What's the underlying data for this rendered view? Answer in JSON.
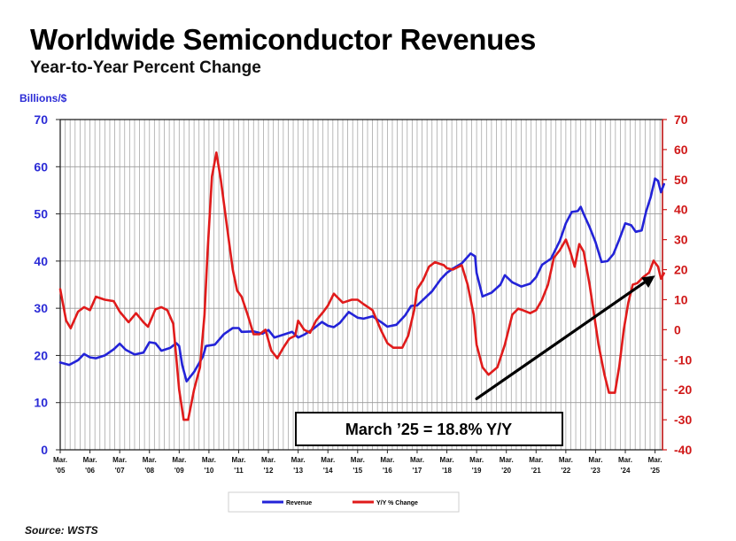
{
  "header": {
    "title": "Worldwide Semiconductor Revenues",
    "subtitle": "Year-to-Year Percent Change",
    "units": "Billions/$"
  },
  "footer": {
    "source": "Source: WSTS"
  },
  "colors": {
    "revenue": "#2323d8",
    "yoy": "#e01b1b",
    "left_axis": "#2b2bd6",
    "right_axis": "#d01818",
    "arrow": "#000000"
  },
  "chart_data": {
    "type": "line",
    "title": "Worldwide Semiconductor Revenues",
    "subtitle": "Year-to-Year Percent Change",
    "ylabel_left": "Billions/$",
    "ylim_left": [
      0,
      70
    ],
    "ylim_right": [
      -40,
      70
    ],
    "left_ticks": [
      0,
      10,
      20,
      30,
      40,
      50,
      60,
      70
    ],
    "right_ticks": [
      -40,
      -30,
      -20,
      -10,
      0,
      10,
      20,
      30,
      40,
      50,
      60,
      70
    ],
    "x_range": [
      2005,
      2025.25
    ],
    "x_ticks": [
      {
        "m": "Mar.",
        "y": "'05",
        "x": 2005
      },
      {
        "m": "Mar.",
        "y": "'06",
        "x": 2006
      },
      {
        "m": "Mar.",
        "y": "'07",
        "x": 2007
      },
      {
        "m": "Mar.",
        "y": "'08",
        "x": 2008
      },
      {
        "m": "Mar.",
        "y": "'09",
        "x": 2009
      },
      {
        "m": "Mar.",
        "y": "'10",
        "x": 2010
      },
      {
        "m": "Mar.",
        "y": "'11",
        "x": 2011
      },
      {
        "m": "Mar.",
        "y": "'12",
        "x": 2012
      },
      {
        "m": "Mar.",
        "y": "'13",
        "x": 2013
      },
      {
        "m": "Mar.",
        "y": "'14",
        "x": 2014
      },
      {
        "m": "Mar.",
        "y": "'15",
        "x": 2015
      },
      {
        "m": "Mar.",
        "y": "'16",
        "x": 2016
      },
      {
        "m": "Mar.",
        "y": "'17",
        "x": 2017
      },
      {
        "m": "Mar.",
        "y": "'18",
        "x": 2018
      },
      {
        "m": "Mar.",
        "y": "'19",
        "x": 2019
      },
      {
        "m": "Mar.",
        "y": "'20",
        "x": 2020
      },
      {
        "m": "Mar.",
        "y": "'21",
        "x": 2021
      },
      {
        "m": "Mar.",
        "y": "'22",
        "x": 2022
      },
      {
        "m": "Mar.",
        "y": "'23",
        "x": 2023
      },
      {
        "m": "Mar.",
        "y": "'24",
        "x": 2024
      },
      {
        "m": "Mar.",
        "y": "'25",
        "x": 2025
      }
    ],
    "series": [
      {
        "name": "Revenue",
        "axis": "left",
        "points": [
          [
            2005.0,
            18.5
          ],
          [
            2005.3,
            18.0
          ],
          [
            2005.6,
            19.0
          ],
          [
            2005.8,
            20.3
          ],
          [
            2006.0,
            19.6
          ],
          [
            2006.2,
            19.4
          ],
          [
            2006.5,
            20.0
          ],
          [
            2006.8,
            21.3
          ],
          [
            2007.0,
            22.5
          ],
          [
            2007.2,
            21.2
          ],
          [
            2007.5,
            20.2
          ],
          [
            2007.8,
            20.6
          ],
          [
            2008.0,
            22.8
          ],
          [
            2008.2,
            22.6
          ],
          [
            2008.4,
            21.0
          ],
          [
            2008.7,
            21.6
          ],
          [
            2008.9,
            22.6
          ],
          [
            2009.0,
            22.0
          ],
          [
            2009.1,
            18.0
          ],
          [
            2009.25,
            14.5
          ],
          [
            2009.5,
            16.5
          ],
          [
            2009.8,
            19.8
          ],
          [
            2009.9,
            22.0
          ],
          [
            2010.2,
            22.3
          ],
          [
            2010.5,
            24.5
          ],
          [
            2010.8,
            25.8
          ],
          [
            2011.0,
            25.8
          ],
          [
            2011.1,
            25.0
          ],
          [
            2011.5,
            25.1
          ],
          [
            2011.8,
            24.6
          ],
          [
            2012.0,
            25.4
          ],
          [
            2012.2,
            23.8
          ],
          [
            2012.5,
            24.4
          ],
          [
            2012.8,
            25.0
          ],
          [
            2013.0,
            23.8
          ],
          [
            2013.2,
            24.4
          ],
          [
            2013.5,
            25.6
          ],
          [
            2013.8,
            27.1
          ],
          [
            2014.0,
            26.3
          ],
          [
            2014.2,
            26.0
          ],
          [
            2014.4,
            26.9
          ],
          [
            2014.7,
            29.2
          ],
          [
            2015.0,
            28.0
          ],
          [
            2015.2,
            27.8
          ],
          [
            2015.5,
            28.3
          ],
          [
            2015.8,
            27.0
          ],
          [
            2016.0,
            26.1
          ],
          [
            2016.3,
            26.5
          ],
          [
            2016.6,
            28.5
          ],
          [
            2016.8,
            30.5
          ],
          [
            2017.0,
            30.6
          ],
          [
            2017.2,
            31.8
          ],
          [
            2017.5,
            33.6
          ],
          [
            2017.8,
            36.2
          ],
          [
            2018.0,
            37.5
          ],
          [
            2018.2,
            38.4
          ],
          [
            2018.5,
            39.5
          ],
          [
            2018.8,
            41.6
          ],
          [
            2018.95,
            41.0
          ],
          [
            2019.0,
            37.5
          ],
          [
            2019.2,
            32.5
          ],
          [
            2019.5,
            33.3
          ],
          [
            2019.8,
            35.0
          ],
          [
            2019.95,
            37.0
          ],
          [
            2020.2,
            35.5
          ],
          [
            2020.5,
            34.6
          ],
          [
            2020.8,
            35.2
          ],
          [
            2021.0,
            36.6
          ],
          [
            2021.2,
            39.2
          ],
          [
            2021.5,
            40.5
          ],
          [
            2021.8,
            44.3
          ],
          [
            2022.0,
            48.0
          ],
          [
            2022.2,
            50.4
          ],
          [
            2022.4,
            50.6
          ],
          [
            2022.5,
            51.5
          ],
          [
            2022.6,
            50.0
          ],
          [
            2022.8,
            47.2
          ],
          [
            2023.0,
            44.0
          ],
          [
            2023.2,
            39.8
          ],
          [
            2023.4,
            40.0
          ],
          [
            2023.6,
            41.5
          ],
          [
            2023.8,
            44.6
          ],
          [
            2024.0,
            48.0
          ],
          [
            2024.2,
            47.6
          ],
          [
            2024.35,
            46.2
          ],
          [
            2024.55,
            46.5
          ],
          [
            2024.7,
            50.5
          ],
          [
            2024.85,
            53.5
          ],
          [
            2025.0,
            57.5
          ],
          [
            2025.1,
            57.0
          ],
          [
            2025.2,
            54.6
          ],
          [
            2025.3,
            56.3
          ]
        ]
      },
      {
        "name": "Y/Y % Change",
        "axis": "right",
        "points": [
          [
            2005.0,
            13.5
          ],
          [
            2005.2,
            3.0
          ],
          [
            2005.35,
            0.5
          ],
          [
            2005.6,
            6.0
          ],
          [
            2005.8,
            7.5
          ],
          [
            2006.0,
            6.5
          ],
          [
            2006.2,
            11.0
          ],
          [
            2006.5,
            10.0
          ],
          [
            2006.8,
            9.5
          ],
          [
            2007.0,
            6.0
          ],
          [
            2007.3,
            2.5
          ],
          [
            2007.55,
            5.5
          ],
          [
            2007.8,
            2.5
          ],
          [
            2007.95,
            1.0
          ],
          [
            2008.2,
            6.8
          ],
          [
            2008.4,
            7.5
          ],
          [
            2008.6,
            6.5
          ],
          [
            2008.8,
            2.0
          ],
          [
            2009.0,
            -20.0
          ],
          [
            2009.15,
            -30.0
          ],
          [
            2009.3,
            -30.0
          ],
          [
            2009.5,
            -20.0
          ],
          [
            2009.7,
            -12.5
          ],
          [
            2009.85,
            5.0
          ],
          [
            2009.95,
            25.0
          ],
          [
            2010.1,
            51.0
          ],
          [
            2010.25,
            59.0
          ],
          [
            2010.4,
            50.0
          ],
          [
            2010.6,
            35.0
          ],
          [
            2010.8,
            20.0
          ],
          [
            2010.95,
            13.0
          ],
          [
            2011.1,
            11.0
          ],
          [
            2011.3,
            5.0
          ],
          [
            2011.5,
            -1.5
          ],
          [
            2011.7,
            -1.5
          ],
          [
            2011.9,
            0.0
          ],
          [
            2012.1,
            -7.0
          ],
          [
            2012.3,
            -9.5
          ],
          [
            2012.5,
            -6.0
          ],
          [
            2012.7,
            -3.0
          ],
          [
            2012.9,
            -2.0
          ],
          [
            2013.0,
            3.0
          ],
          [
            2013.2,
            0.0
          ],
          [
            2013.4,
            -1.0
          ],
          [
            2013.6,
            3.0
          ],
          [
            2013.85,
            6.0
          ],
          [
            2014.0,
            8.0
          ],
          [
            2014.2,
            12.0
          ],
          [
            2014.5,
            9.0
          ],
          [
            2014.8,
            10.0
          ],
          [
            2015.0,
            10.0
          ],
          [
            2015.2,
            8.5
          ],
          [
            2015.5,
            6.5
          ],
          [
            2015.8,
            -0.5
          ],
          [
            2016.0,
            -4.5
          ],
          [
            2016.2,
            -6.0
          ],
          [
            2016.5,
            -6.0
          ],
          [
            2016.7,
            -2.0
          ],
          [
            2016.9,
            6.5
          ],
          [
            2017.0,
            13.5
          ],
          [
            2017.2,
            16.5
          ],
          [
            2017.4,
            21.0
          ],
          [
            2017.6,
            22.5
          ],
          [
            2017.9,
            21.5
          ],
          [
            2018.0,
            20.5
          ],
          [
            2018.2,
            20.0
          ],
          [
            2018.5,
            21.5
          ],
          [
            2018.7,
            15.0
          ],
          [
            2018.9,
            5.0
          ],
          [
            2019.0,
            -5.0
          ],
          [
            2019.2,
            -12.5
          ],
          [
            2019.4,
            -15.0
          ],
          [
            2019.7,
            -12.5
          ],
          [
            2019.95,
            -5.0
          ],
          [
            2020.2,
            5.0
          ],
          [
            2020.4,
            7.0
          ],
          [
            2020.55,
            6.5
          ],
          [
            2020.8,
            5.5
          ],
          [
            2021.0,
            6.5
          ],
          [
            2021.2,
            10.0
          ],
          [
            2021.4,
            15.0
          ],
          [
            2021.6,
            24.0
          ],
          [
            2021.8,
            26.5
          ],
          [
            2022.0,
            30.0
          ],
          [
            2022.15,
            26.0
          ],
          [
            2022.3,
            21.0
          ],
          [
            2022.45,
            28.5
          ],
          [
            2022.6,
            26.0
          ],
          [
            2022.8,
            15.0
          ],
          [
            2022.95,
            5.0
          ],
          [
            2023.1,
            -5.0
          ],
          [
            2023.3,
            -15.0
          ],
          [
            2023.45,
            -21.0
          ],
          [
            2023.65,
            -21.0
          ],
          [
            2023.8,
            -12.0
          ],
          [
            2023.95,
            0.0
          ],
          [
            2024.1,
            9.0
          ],
          [
            2024.25,
            15.0
          ],
          [
            2024.4,
            15.5
          ],
          [
            2024.6,
            17.5
          ],
          [
            2024.8,
            19.0
          ],
          [
            2024.95,
            23.0
          ],
          [
            2025.1,
            21.0
          ],
          [
            2025.2,
            17.0
          ],
          [
            2025.3,
            18.8
          ]
        ]
      }
    ],
    "annotation": {
      "text": "March ’25 = 18.8% Y/Y"
    },
    "trend_arrow": {
      "from": [
        2019.0,
        -23.0
      ],
      "to": [
        2025.0,
        18.0
      ]
    },
    "legend": [
      "Revenue",
      "Y/Y % Change"
    ],
    "legend_position": "bottom-center",
    "grid": true
  }
}
